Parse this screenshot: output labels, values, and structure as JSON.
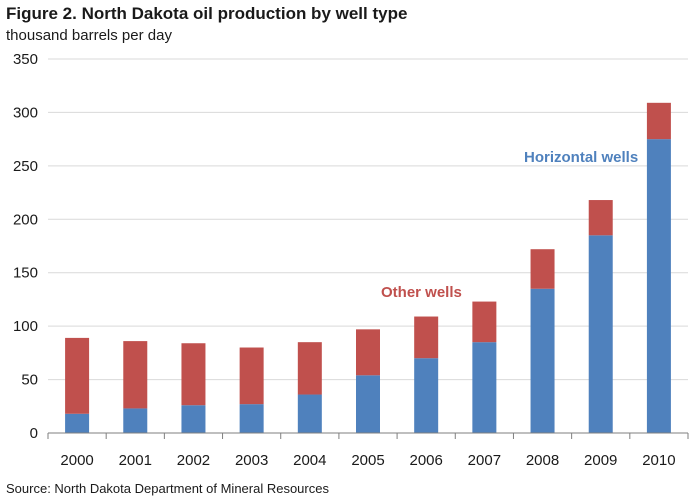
{
  "chart_data": {
    "type": "bar",
    "stacked": true,
    "title": "Figure 2.  North Dakota oil production by well type",
    "subtitle": "thousand barrels per day",
    "source": "Source: North Dakota Department of Mineral Resources",
    "categories": [
      "2000",
      "2001",
      "2002",
      "2003",
      "2004",
      "2005",
      "2006",
      "2007",
      "2008",
      "2009",
      "2010"
    ],
    "series": [
      {
        "name": "Horizontal wells",
        "color": "#4f81bd",
        "values": [
          18,
          23,
          26,
          27,
          36,
          54,
          70,
          85,
          135,
          185,
          275
        ]
      },
      {
        "name": "Other wells",
        "color": "#c0504d",
        "values": [
          71,
          63,
          58,
          53,
          49,
          43,
          39,
          38,
          37,
          33,
          34
        ]
      }
    ],
    "ylim": [
      0,
      350
    ],
    "yticks": [
      "0",
      "50",
      "100",
      "150",
      "200",
      "250",
      "300",
      "350"
    ],
    "grid": true,
    "legend": "inline annotations",
    "annotations": [
      {
        "text": "Horizontal wells",
        "color": "#4f81bd"
      },
      {
        "text": "Other wells",
        "color": "#c0504d"
      }
    ]
  }
}
